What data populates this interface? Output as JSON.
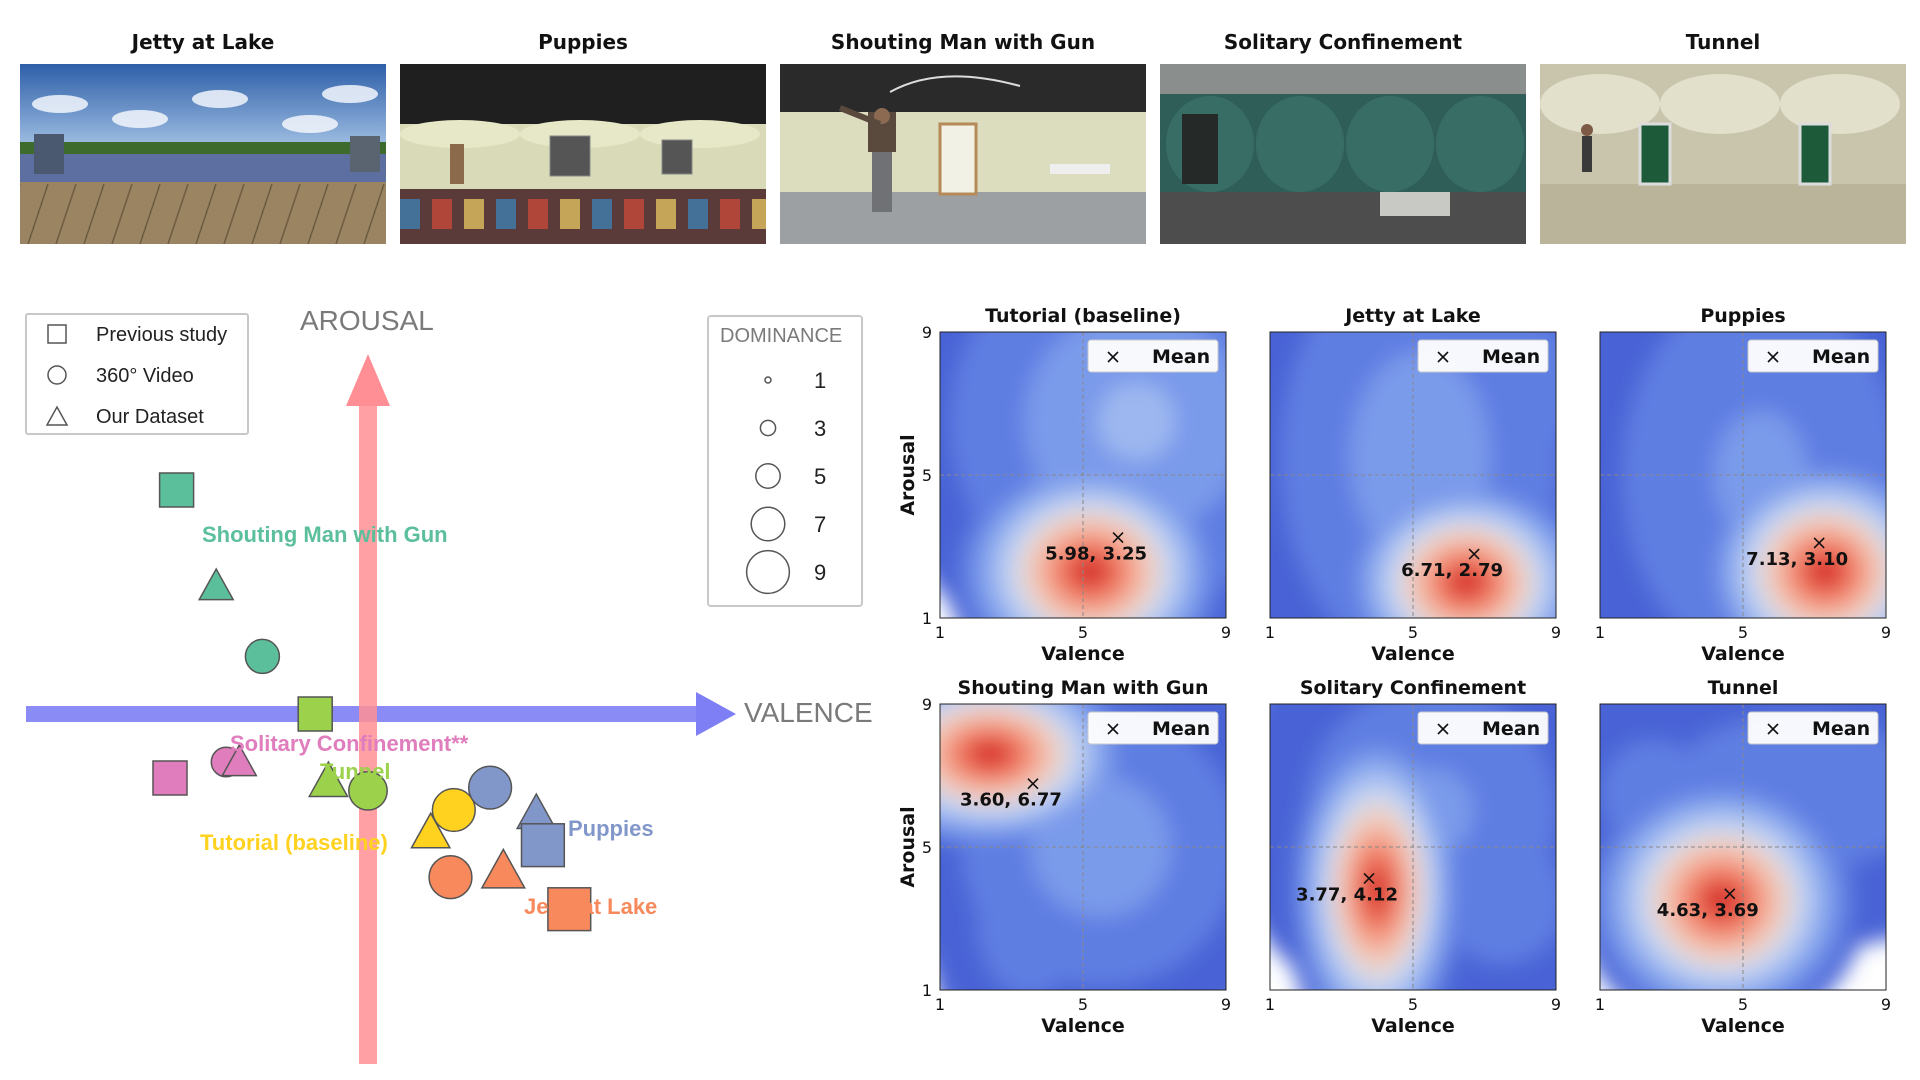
{
  "thumbnails": [
    {
      "title": "Jetty at Lake",
      "scene": "lake"
    },
    {
      "title": "Puppies",
      "scene": "room"
    },
    {
      "title": "Shouting Man with Gun",
      "scene": "gun"
    },
    {
      "title": "Solitary Confinement",
      "scene": "cell"
    },
    {
      "title": "Tunnel",
      "scene": "tunnel"
    }
  ],
  "chart_data": [
    {
      "type": "scatter",
      "x_axis_label": "VALENCE",
      "y_axis_label": "AROUSAL",
      "legend": [
        {
          "marker": "square",
          "label": "Previous study"
        },
        {
          "marker": "circle",
          "label": "360° Video"
        },
        {
          "marker": "triangle",
          "label": "Our Dataset"
        }
      ],
      "dominance_legend": {
        "title": "DOMINANCE",
        "values": [
          1,
          3,
          5,
          7,
          9
        ]
      },
      "scenes": [
        {
          "label": "Shouting Man with Gun",
          "color": "#5bbf9c",
          "points": [
            {
              "marker": "square",
              "valence": -5.8,
              "arousal": 7.0,
              "dominance": 5
            },
            {
              "marker": "triangle",
              "valence": -4.6,
              "arousal": 4.0,
              "dominance": 5
            },
            {
              "marker": "circle",
              "valence": -3.2,
              "arousal": 1.8,
              "dominance": 5
            }
          ]
        },
        {
          "label": "Solitary Confinement**",
          "color": "#e07dbd",
          "points": [
            {
              "marker": "square",
              "valence": -6.0,
              "arousal": -2.0,
              "dominance": 5
            },
            {
              "marker": "circle",
              "valence": -4.3,
              "arousal": -1.5,
              "dominance": 4
            },
            {
              "marker": "triangle",
              "valence": -3.9,
              "arousal": -1.5,
              "dominance": 5
            }
          ]
        },
        {
          "label": "Tunnel",
          "color": "#9cd14c",
          "points": [
            {
              "marker": "square",
              "valence": -1.6,
              "arousal": 0.0,
              "dominance": 5
            },
            {
              "marker": "triangle",
              "valence": -1.2,
              "arousal": -2.1,
              "dominance": 6
            },
            {
              "marker": "circle",
              "valence": 0.0,
              "arousal": -2.4,
              "dominance": 6
            }
          ]
        },
        {
          "label": "Tutorial (baseline)",
          "color": "#ffd21f",
          "points": [
            {
              "marker": "circle",
              "valence": 2.6,
              "arousal": -3.0,
              "dominance": 7
            },
            {
              "marker": "triangle",
              "valence": 1.9,
              "arousal": -3.7,
              "dominance": 6
            }
          ]
        },
        {
          "label": "Puppies",
          "color": "#8297c9",
          "points": [
            {
              "marker": "circle",
              "valence": 3.7,
              "arousal": -2.3,
              "dominance": 7
            },
            {
              "marker": "triangle",
              "valence": 5.1,
              "arousal": -3.1,
              "dominance": 6
            },
            {
              "marker": "square",
              "valence": 5.3,
              "arousal": -4.1,
              "dominance": 7
            }
          ]
        },
        {
          "label": "Jetty at Lake",
          "color": "#f7895c",
          "points": [
            {
              "marker": "circle",
              "valence": 2.5,
              "arousal": -5.1,
              "dominance": 7
            },
            {
              "marker": "triangle",
              "valence": 4.1,
              "arousal": -4.9,
              "dominance": 7
            },
            {
              "marker": "square",
              "valence": 6.1,
              "arousal": -6.1,
              "dominance": 7
            }
          ]
        }
      ]
    },
    {
      "type": "contour",
      "xlabel": "Valence",
      "ylabel": "Arousal",
      "xlim": [
        1,
        9
      ],
      "ylim": [
        1,
        9
      ],
      "xticks": [
        1,
        5,
        9
      ],
      "yticks": [
        1,
        5,
        9
      ],
      "legend_label": "Mean",
      "panels": [
        {
          "title": "Tutorial (baseline)",
          "mean": [
            5.98,
            3.25
          ],
          "label": "5.98, 3.25",
          "blobs": [
            [
              5.2,
              2.3,
              1.4,
              1.2,
              1.0
            ],
            [
              6.5,
              6.5,
              2.5,
              2.5,
              0.35
            ],
            [
              4.5,
              4.5,
              1.5,
              1.5,
              0.25
            ]
          ]
        },
        {
          "title": "Jetty at Lake",
          "mean": [
            6.71,
            2.79
          ],
          "label": "6.71, 2.79",
          "blobs": [
            [
              6.5,
              2.0,
              1.3,
              1.1,
              1.0
            ],
            [
              5.2,
              5.5,
              2.0,
              3.0,
              0.3
            ],
            [
              7.5,
              7.5,
              1.5,
              1.5,
              0.2
            ]
          ]
        },
        {
          "title": "Puppies",
          "mean": [
            7.13,
            3.1
          ],
          "label": "7.13, 3.10",
          "blobs": [
            [
              7.3,
              2.3,
              1.3,
              1.2,
              1.0
            ],
            [
              5.5,
              5.0,
              2.2,
              3.0,
              0.25
            ],
            [
              3.0,
              6.0,
              1.0,
              1.0,
              0.12
            ]
          ]
        },
        {
          "title": "Shouting Man with Gun",
          "mean": [
            3.6,
            6.77
          ],
          "label": "3.60, 6.77",
          "blobs": [
            [
              2.4,
              7.6,
              1.5,
              1.0,
              1.0
            ],
            [
              5.5,
              5.0,
              2.0,
              2.0,
              0.3
            ],
            [
              3.5,
              3.0,
              1.0,
              1.5,
              0.2
            ]
          ]
        },
        {
          "title": "Solitary Confinement",
          "mean": [
            3.77,
            4.12
          ],
          "label": "3.77, 4.12",
          "blobs": [
            [
              4.0,
              3.8,
              0.9,
              1.7,
              1.0
            ],
            [
              5.5,
              6.0,
              2.0,
              2.0,
              0.25
            ],
            [
              7.5,
              3.5,
              1.2,
              1.2,
              0.2
            ]
          ]
        },
        {
          "title": "Tunnel",
          "mean": [
            4.63,
            3.69
          ],
          "label": "4.63, 3.69",
          "blobs": [
            [
              4.4,
              3.5,
              1.4,
              1.3,
              1.0
            ],
            [
              6.5,
              6.5,
              2.5,
              1.5,
              0.2
            ],
            [
              2.5,
              6.5,
              1.5,
              1.5,
              0.15
            ]
          ]
        }
      ]
    }
  ]
}
